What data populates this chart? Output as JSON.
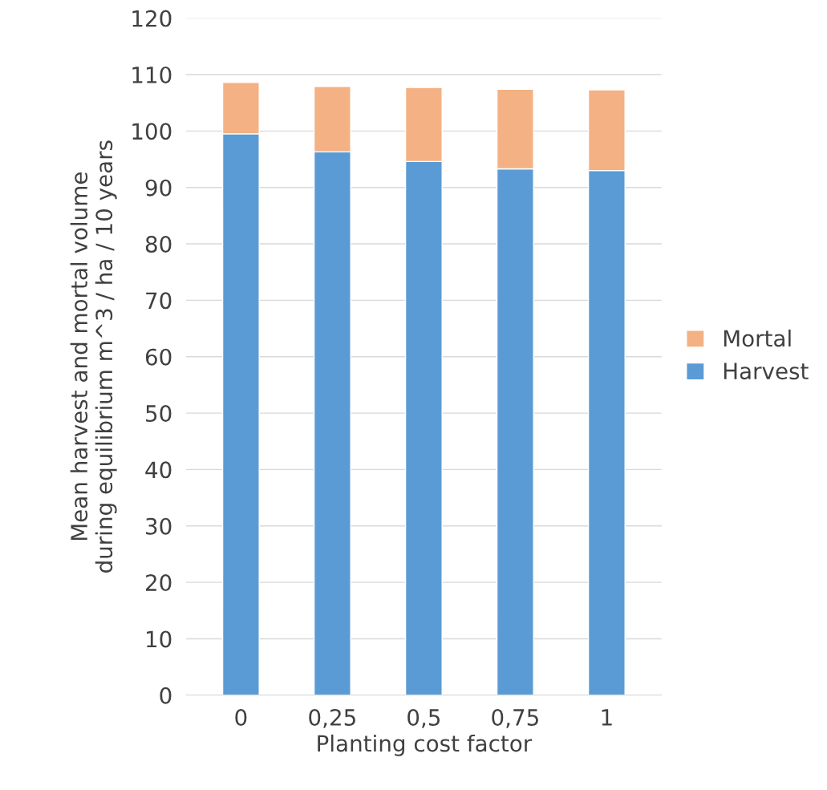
{
  "chart_data": {
    "type": "bar",
    "stacked": true,
    "xlabel": "Planting cost factor",
    "ylabel": "Mean harvest and mortal volume\nduring equilibrium m^3 / ha / 10 years",
    "categories": [
      "0",
      "0,25",
      "0,5",
      "0,75",
      "1"
    ],
    "series": [
      {
        "name": "Harvest",
        "color": "#5b9bd5",
        "values": [
          99.5,
          96.3,
          94.6,
          93.3,
          93.0
        ]
      },
      {
        "name": "Mortal",
        "color": "#f4b183",
        "values": [
          9.1,
          11.6,
          13.1,
          14.1,
          14.3
        ]
      }
    ],
    "ylim": [
      0,
      120
    ],
    "yticks": [
      0,
      10,
      20,
      30,
      40,
      50,
      60,
      70,
      80,
      90,
      100,
      110,
      120
    ],
    "grid": "y",
    "legend": "right"
  }
}
